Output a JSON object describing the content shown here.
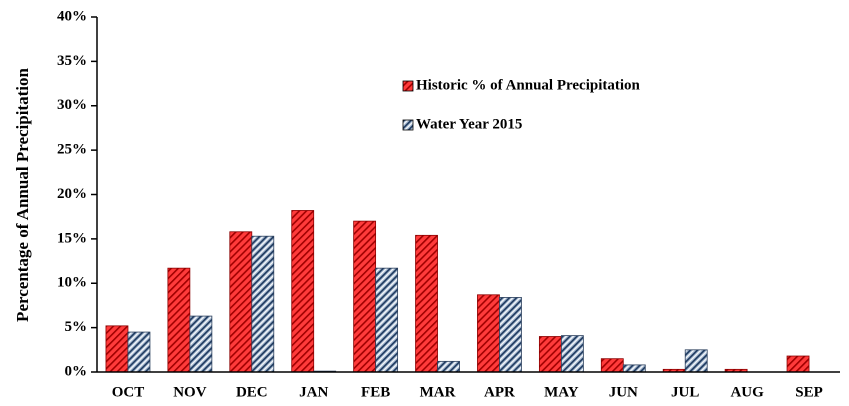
{
  "chart_data": {
    "type": "bar",
    "y_label": "Percentage of Annual Precipitation",
    "categories": [
      "OCT",
      "NOV",
      "DEC",
      "JAN",
      "FEB",
      "MAR",
      "APR",
      "MAY",
      "JUN",
      "JUL",
      "AUG",
      "SEP"
    ],
    "series": [
      {
        "name": "Historic % of Annual Precipitation",
        "color": "#ff3b3b",
        "values": [
          5.2,
          11.7,
          15.8,
          18.2,
          17.0,
          15.4,
          8.7,
          4.0,
          1.5,
          0.3,
          0.3,
          1.8
        ]
      },
      {
        "name": "Water Year 2015",
        "color": "#9fb3cc",
        "values": [
          4.5,
          6.3,
          15.3,
          0.1,
          11.7,
          1.2,
          8.4,
          4.1,
          0.8,
          2.5,
          0,
          0
        ]
      }
    ],
    "ylim": [
      0,
      40
    ],
    "yticks": [
      {
        "value": 0,
        "label": "0%"
      },
      {
        "value": 5,
        "label": "5%"
      },
      {
        "value": 10,
        "label": "10%"
      },
      {
        "value": 15,
        "label": "15%"
      },
      {
        "value": 20,
        "label": "20%"
      },
      {
        "value": 25,
        "label": "25%"
      },
      {
        "value": 30,
        "label": "30%"
      },
      {
        "value": 35,
        "label": "35%"
      },
      {
        "value": 40,
        "label": "40%"
      }
    ],
    "grid": false
  }
}
